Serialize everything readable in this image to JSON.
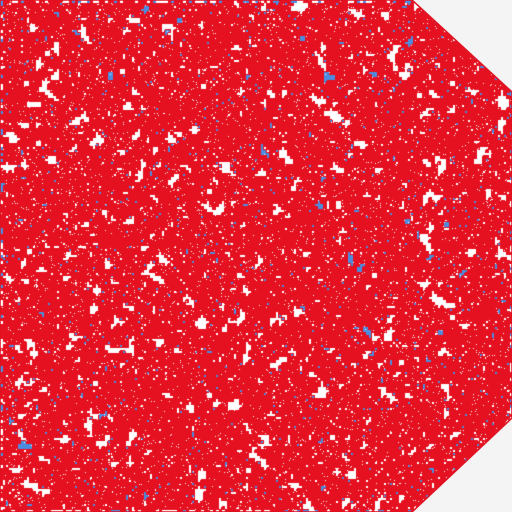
{
  "shape": {
    "kind": "octagon-with-two-cut-corners",
    "cut_corners": [
      "top-right",
      "bottom-right"
    ]
  },
  "colors": {
    "background": "#f4f4f4",
    "fill_primary": "#e51020",
    "fill_secondary": "#4a8de0",
    "speckle": "#ffffff",
    "outline": "#e01020"
  },
  "pattern": {
    "style": "dense noisy mosaic with red boundaries around white and blue cells"
  }
}
